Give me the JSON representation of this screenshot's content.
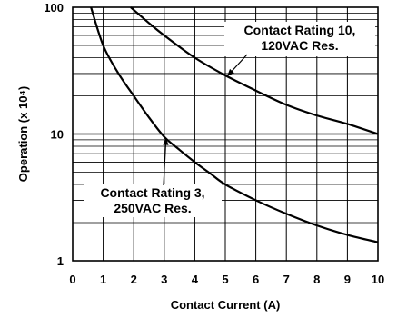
{
  "chart_data": {
    "type": "line",
    "xlabel": "Contact Current (A)",
    "ylabel": "Operation (x 10⁴)",
    "xlim": [
      0,
      10
    ],
    "ylim": [
      1,
      100
    ],
    "yscale": "log",
    "grid": true,
    "x_ticks": [
      "0",
      "1",
      "2",
      "3",
      "4",
      "5",
      "6",
      "7",
      "8",
      "9",
      "10"
    ],
    "y_ticks": [
      "1",
      "10",
      "100"
    ],
    "series": [
      {
        "points": [
          [
            0.6,
            100
          ],
          [
            1,
            50
          ],
          [
            1.5,
            30
          ],
          [
            2,
            20
          ],
          [
            2.5,
            13.5
          ],
          [
            3,
            9.5
          ],
          [
            3.5,
            7.5
          ],
          [
            4,
            6
          ],
          [
            4.5,
            4.9
          ],
          [
            5,
            4
          ],
          [
            6,
            3
          ],
          [
            7,
            2.35
          ],
          [
            8,
            1.9
          ],
          [
            9,
            1.6
          ],
          [
            10,
            1.4
          ]
        ]
      },
      {
        "points": [
          [
            1.9,
            100
          ],
          [
            2.5,
            75
          ],
          [
            3,
            60
          ],
          [
            4,
            40
          ],
          [
            5,
            29
          ],
          [
            6,
            22
          ],
          [
            7,
            17
          ],
          [
            8,
            14
          ],
          [
            9,
            12
          ],
          [
            10,
            10
          ]
        ]
      }
    ],
    "annotations": [
      {
        "lines": [
          "Contact Rating 10,",
          "120VAC Res."
        ],
        "arrow_to": [
          5,
          29
        ]
      },
      {
        "lines": [
          "Contact Rating 3,",
          "250VAC Res."
        ],
        "arrow_to": [
          3,
          9.5
        ]
      }
    ]
  }
}
